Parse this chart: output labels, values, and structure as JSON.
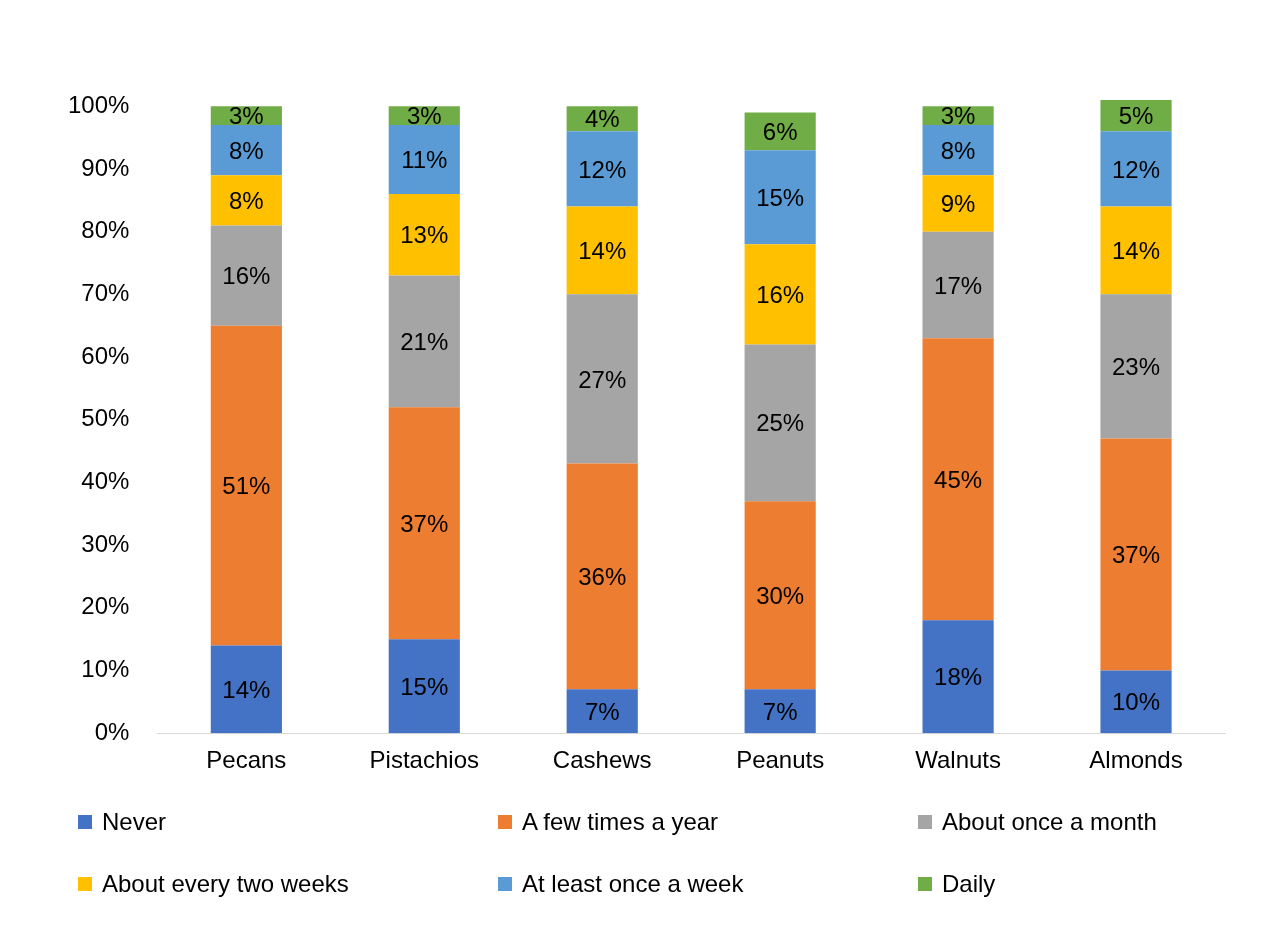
{
  "chart_data": {
    "type": "bar",
    "stacked": true,
    "categories": [
      "Pecans",
      "Pistachios",
      "Cashews",
      "Peanuts",
      "Walnuts",
      "Almonds"
    ],
    "series": [
      {
        "name": "Never",
        "color": "#4472c4",
        "values": [
          14,
          15,
          7,
          7,
          18,
          10
        ],
        "value_labels": [
          "14%",
          "15%",
          "7%",
          "7%",
          "18%",
          "10%"
        ]
      },
      {
        "name": "A few times a year",
        "color": "#ed7d31",
        "values": [
          51,
          37,
          36,
          30,
          45,
          37
        ],
        "value_labels": [
          "51%",
          "37%",
          "36%",
          "30%",
          "45%",
          "37%"
        ]
      },
      {
        "name": "About once a month",
        "color": "#a5a5a5",
        "values": [
          16,
          21,
          27,
          25,
          17,
          23
        ],
        "value_labels": [
          "16%",
          "21%",
          "27%",
          "25%",
          "17%",
          "23%"
        ]
      },
      {
        "name": "About every two weeks",
        "color": "#ffc000",
        "values": [
          8,
          13,
          14,
          16,
          9,
          14
        ],
        "value_labels": [
          "8%",
          "13%",
          "14%",
          "16%",
          "9%",
          "14%"
        ]
      },
      {
        "name": "At least once a week",
        "color": "#5b9bd5",
        "values": [
          8,
          11,
          12,
          15,
          8,
          12
        ],
        "value_labels": [
          "8%",
          "11%",
          "12%",
          "15%",
          "8%",
          "12%"
        ]
      },
      {
        "name": "Daily",
        "color": "#70ad47",
        "values": [
          3,
          3,
          4,
          6,
          3,
          5
        ],
        "value_labels": [
          "3%",
          "3%",
          "4%",
          "6%",
          "3%",
          "5%"
        ]
      }
    ],
    "ylim": [
      0,
      101
    ],
    "yticks": [
      {
        "value": 0,
        "label": "0%"
      },
      {
        "value": 10,
        "label": "10%"
      },
      {
        "value": 20,
        "label": "20%"
      },
      {
        "value": 30,
        "label": "30%"
      },
      {
        "value": 40,
        "label": "40%"
      },
      {
        "value": 50,
        "label": "50%"
      },
      {
        "value": 60,
        "label": "60%"
      },
      {
        "value": 70,
        "label": "70%"
      },
      {
        "value": 80,
        "label": "80%"
      },
      {
        "value": 90,
        "label": "90%"
      },
      {
        "value": 100,
        "label": "100%"
      }
    ],
    "legend": "bottom"
  }
}
